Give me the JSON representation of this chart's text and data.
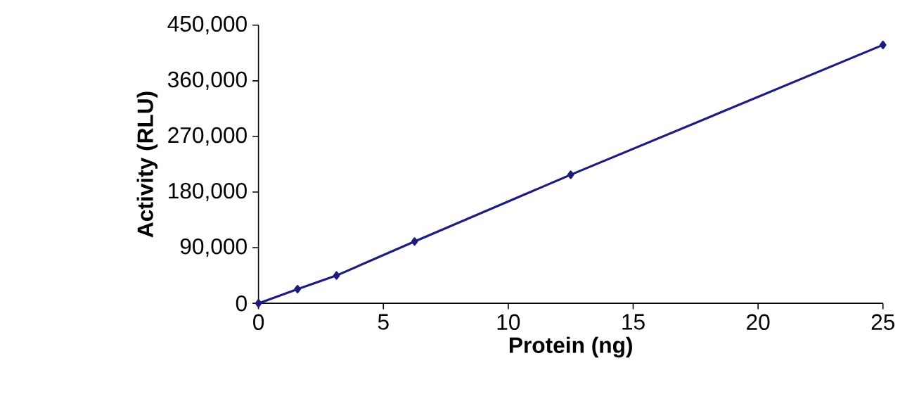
{
  "chart_data": {
    "type": "line",
    "xlabel": "Protein (ng)",
    "ylabel": "Activity (RLU)",
    "x": [
      0,
      1.5625,
      3.125,
      6.25,
      12.5,
      25
    ],
    "series": [
      {
        "color": "#1c1c80",
        "values": [
          0,
          23000,
          45000,
          100000,
          208000,
          418000
        ]
      }
    ],
    "xlim": [
      0,
      25
    ],
    "ylim": [
      0,
      450000
    ],
    "xticks": [
      0,
      5,
      10,
      15,
      20,
      25
    ],
    "yticks": [
      0,
      {
        "value": 90000,
        "label": "90,000"
      },
      {
        "value": 180000,
        "label": "180,000"
      },
      {
        "value": 270000,
        "label": "270,000"
      },
      {
        "value": 360000,
        "label": "360,000"
      },
      {
        "value": 450000,
        "label": "450,000"
      }
    ],
    "marker": "diamond",
    "line_style": "solid"
  }
}
